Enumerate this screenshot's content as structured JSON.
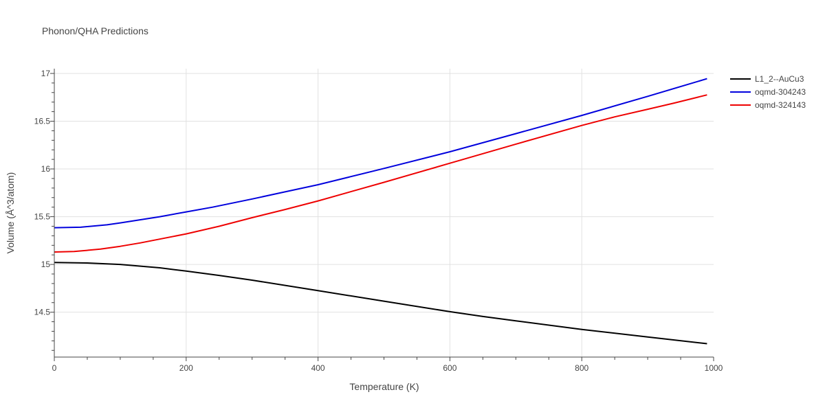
{
  "chart_data": {
    "type": "line",
    "title": "Phonon/QHA Predictions",
    "xlabel": "Temperature (K)",
    "ylabel": "Volume (Å^3/atom)",
    "xlim": [
      0,
      1000
    ],
    "ylim": [
      14.03,
      17.05
    ],
    "xticks": [
      0,
      200,
      400,
      600,
      800,
      1000
    ],
    "xtick_labels": [
      "0",
      "200",
      "400",
      "600",
      "800",
      "1000"
    ],
    "yticks": [
      14.5,
      15,
      15.5,
      16,
      16.5,
      17
    ],
    "ytick_labels": [
      "14.5",
      "15",
      "15.5",
      "16",
      "16.5",
      "17"
    ],
    "grid": true,
    "legend_position": "top-right",
    "series": [
      {
        "name": "L1_2--AuCu3",
        "color": "#000000",
        "x": [
          0,
          50,
          100,
          160,
          200,
          250,
          300,
          400,
          500,
          600,
          650,
          700,
          800,
          900,
          990
        ],
        "y": [
          15.02,
          15.015,
          15.0,
          14.965,
          14.93,
          14.885,
          14.835,
          14.725,
          14.615,
          14.505,
          14.455,
          14.41,
          14.32,
          14.24,
          14.17
        ]
      },
      {
        "name": "oqmd-304243",
        "color": "#0000dd",
        "x": [
          0,
          40,
          80,
          100,
          160,
          200,
          240,
          300,
          350,
          400,
          500,
          600,
          700,
          800,
          900,
          990
        ],
        "y": [
          15.385,
          15.39,
          15.415,
          15.435,
          15.5,
          15.55,
          15.6,
          15.685,
          15.76,
          15.835,
          16.005,
          16.18,
          16.37,
          16.56,
          16.76,
          16.945
        ]
      },
      {
        "name": "oqmd-324143",
        "color": "#ee0000",
        "x": [
          0,
          30,
          70,
          100,
          130,
          160,
          200,
          250,
          300,
          350,
          400,
          500,
          600,
          700,
          800,
          850,
          900,
          940,
          990
        ],
        "y": [
          15.13,
          15.135,
          15.16,
          15.19,
          15.225,
          15.265,
          15.32,
          15.4,
          15.49,
          15.575,
          15.665,
          15.86,
          16.06,
          16.26,
          16.455,
          16.545,
          16.625,
          16.69,
          16.775
        ]
      }
    ]
  }
}
